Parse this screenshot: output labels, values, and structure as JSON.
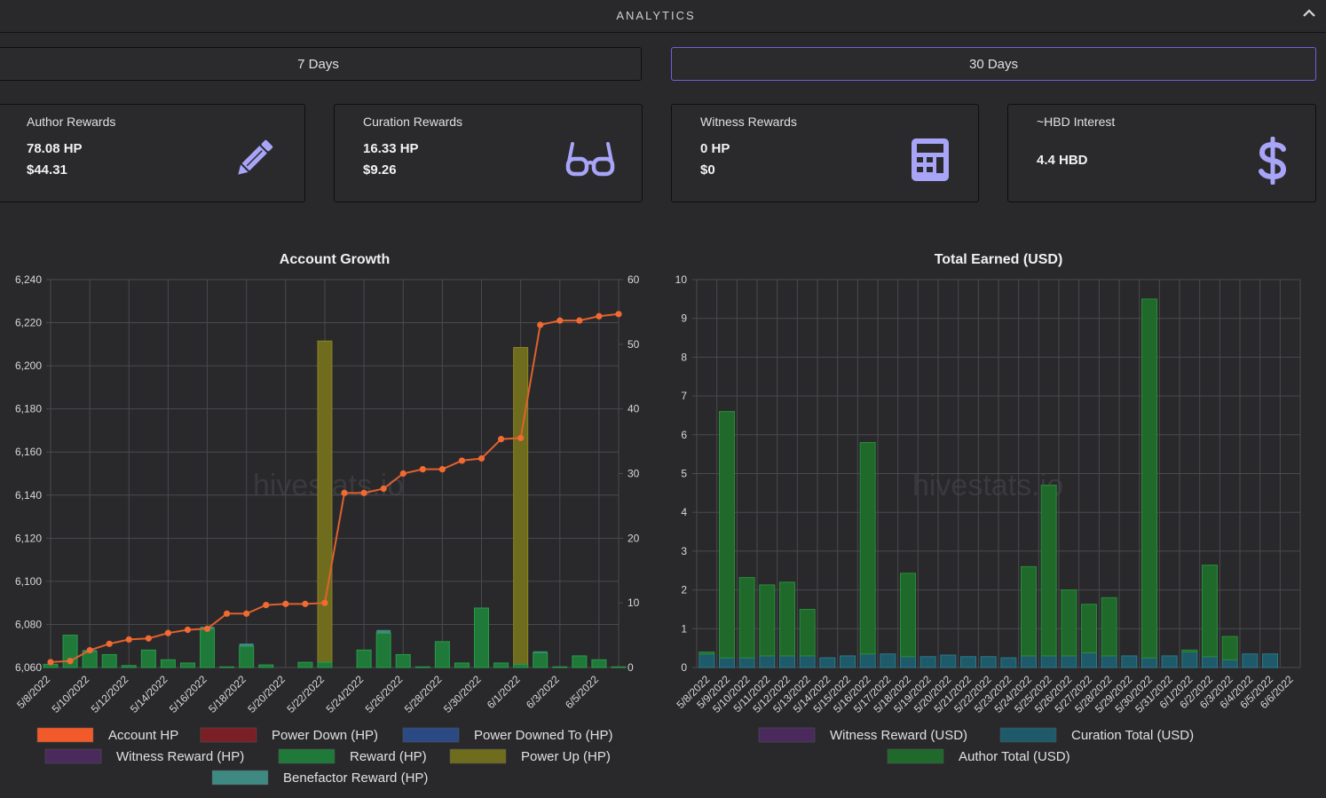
{
  "header": {
    "title": "ANALYTICS"
  },
  "tabs": [
    {
      "label": "7 Days"
    },
    {
      "label": "30 Days"
    }
  ],
  "cards": [
    {
      "title": "Author Rewards",
      "value1": "78.08 HP",
      "value2": "$44.31",
      "icon": "pencil-icon"
    },
    {
      "title": "Curation Rewards",
      "value1": "16.33 HP",
      "value2": "$9.26",
      "icon": "glasses-icon"
    },
    {
      "title": "Witness Rewards",
      "value1": "0 HP",
      "value2": "$0",
      "icon": "calculator-icon"
    },
    {
      "title": "~HBD Interest",
      "value1": "4.4 HBD",
      "value2": "",
      "icon": "dollar-icon"
    }
  ],
  "colors": {
    "accent": "#6c62d8",
    "icon": "#a8a4f7",
    "account_hp": "#f25a2a",
    "power_down": "#7a1f26",
    "power_downed_to": "#2b4a84",
    "witness": "#4a2a5c",
    "reward": "#1f7a3a",
    "power_up": "#706c1e",
    "benefactor": "#3e8a82",
    "curation": "#1f5a6a",
    "author": "#1f6a2a"
  },
  "chart_data": [
    {
      "type": "bar",
      "title": "Account Growth",
      "watermark": "hivestats.io",
      "x": [
        "5/8/2022",
        "5/9/2022",
        "5/10/2022",
        "5/11/2022",
        "5/12/2022",
        "5/13/2022",
        "5/14/2022",
        "5/15/2022",
        "5/16/2022",
        "5/17/2022",
        "5/18/2022",
        "5/19/2022",
        "5/20/2022",
        "5/21/2022",
        "5/22/2022",
        "5/23/2022",
        "5/24/2022",
        "5/25/2022",
        "5/26/2022",
        "5/27/2022",
        "5/28/2022",
        "5/29/2022",
        "5/30/2022",
        "5/31/2022",
        "6/1/2022",
        "6/2/2022",
        "6/3/2022",
        "6/4/2022",
        "6/5/2022",
        "6/6/2022"
      ],
      "x_tick_labels": [
        "5/8/2022",
        "5/10/2022",
        "5/12/2022",
        "5/14/2022",
        "5/16/2022",
        "5/18/2022",
        "5/20/2022",
        "5/22/2022",
        "5/24/2022",
        "5/26/2022",
        "5/28/2022",
        "5/30/2022",
        "6/1/2022",
        "6/3/2022",
        "6/5/2022"
      ],
      "y_left": {
        "ylim": [
          6060,
          6240
        ],
        "ticks": [
          "6,060",
          "6,080",
          "6,100",
          "6,120",
          "6,140",
          "6,160",
          "6,180",
          "6,200",
          "6,220",
          "6,240"
        ]
      },
      "y_right": {
        "ylim": [
          0,
          60
        ],
        "ticks": [
          "0",
          "10",
          "20",
          "30",
          "40",
          "50",
          "60"
        ]
      },
      "grid": true,
      "legend_position": "bottom",
      "legend": [
        "Account HP",
        "Power Down (HP)",
        "Power Downed To (HP)",
        "Witness Reward (HP)",
        "Reward (HP)",
        "Power Up (HP)",
        "Benefactor Reward (HP)"
      ],
      "series": [
        {
          "name": "Account HP",
          "axis": "left",
          "type": "line",
          "values": [
            6062.5,
            6063,
            6068,
            6071,
            6073,
            6073.5,
            6076,
            6077.5,
            6078,
            6085,
            6085,
            6089,
            6089.5,
            6089.5,
            6090,
            6141,
            6141,
            6143,
            6150,
            6152,
            6152,
            6156,
            6157,
            6166,
            6166.5,
            6219,
            6221,
            6221,
            6223,
            6224
          ]
        },
        {
          "name": "Reward (HP)",
          "axis": "right",
          "type": "bar",
          "values": [
            0.5,
            5,
            2.5,
            2,
            0.3,
            2.7,
            1.2,
            0.7,
            6,
            0.1,
            3.3,
            0.4,
            0,
            0.8,
            0.8,
            0,
            2.7,
            5.3,
            2,
            0.1,
            4,
            0.7,
            9.2,
            0.7,
            0.5,
            2.3,
            0.1,
            1.8,
            1.2,
            0.1
          ]
        },
        {
          "name": "Benefactor Reward (HP)",
          "axis": "right",
          "type": "bar",
          "values": [
            0,
            0,
            0.2,
            0,
            0,
            0,
            0,
            0,
            0.3,
            0,
            0.4,
            0,
            0,
            0,
            0,
            0,
            0,
            0.5,
            0,
            0,
            0,
            0,
            0,
            0,
            0,
            0.2,
            0,
            0,
            0,
            0
          ]
        },
        {
          "name": "Power Up (HP)",
          "axis": "right",
          "type": "bar",
          "values": [
            0,
            0,
            0,
            0,
            0,
            0,
            0,
            0,
            0,
            0,
            0,
            0,
            0,
            0,
            50.5,
            0,
            0,
            0,
            0,
            0,
            0,
            0,
            0,
            0,
            49.5,
            0,
            0,
            0,
            0,
            0
          ]
        }
      ]
    },
    {
      "type": "bar",
      "title": "Total Earned (USD)",
      "watermark": "hivestats.io",
      "x": [
        "5/8/2022",
        "5/9/2022",
        "5/10/2022",
        "5/11/2022",
        "5/12/2022",
        "5/13/2022",
        "5/14/2022",
        "5/15/2022",
        "5/16/2022",
        "5/17/2022",
        "5/18/2022",
        "5/19/2022",
        "5/20/2022",
        "5/21/2022",
        "5/22/2022",
        "5/23/2022",
        "5/24/2022",
        "5/25/2022",
        "5/26/2022",
        "5/27/2022",
        "5/28/2022",
        "5/29/2022",
        "5/30/2022",
        "5/31/2022",
        "6/1/2022",
        "6/2/2022",
        "6/3/2022",
        "6/4/2022",
        "6/5/2022",
        "6/6/2022"
      ],
      "ylim": [
        0,
        10
      ],
      "y_ticks": [
        "0",
        "1",
        "2",
        "3",
        "4",
        "5",
        "6",
        "7",
        "8",
        "9",
        "10"
      ],
      "stacked": true,
      "grid": true,
      "legend_position": "bottom",
      "legend": [
        "Witness Reward (USD)",
        "Curation Total (USD)",
        "Author Total (USD)"
      ],
      "series": [
        {
          "name": "Curation Total (USD)",
          "values": [
            0.35,
            0.25,
            0.25,
            0.3,
            0.3,
            0.3,
            0.25,
            0.3,
            0.35,
            0.35,
            0.28,
            0.28,
            0.32,
            0.28,
            0.28,
            0.25,
            0.3,
            0.3,
            0.3,
            0.38,
            0.3,
            0.3,
            0.25,
            0.3,
            0.4,
            0.28,
            0.2,
            0.35,
            0.35,
            0
          ]
        },
        {
          "name": "Author Total (USD)",
          "values": [
            0.05,
            6.35,
            2.07,
            1.83,
            1.9,
            1.2,
            0,
            0,
            5.45,
            0,
            2.15,
            0,
            0,
            0,
            0,
            0,
            2.3,
            4.4,
            1.7,
            1.25,
            1.5,
            0,
            9.25,
            0,
            0.05,
            2.36,
            0.6,
            0,
            0,
            0
          ]
        }
      ]
    }
  ]
}
